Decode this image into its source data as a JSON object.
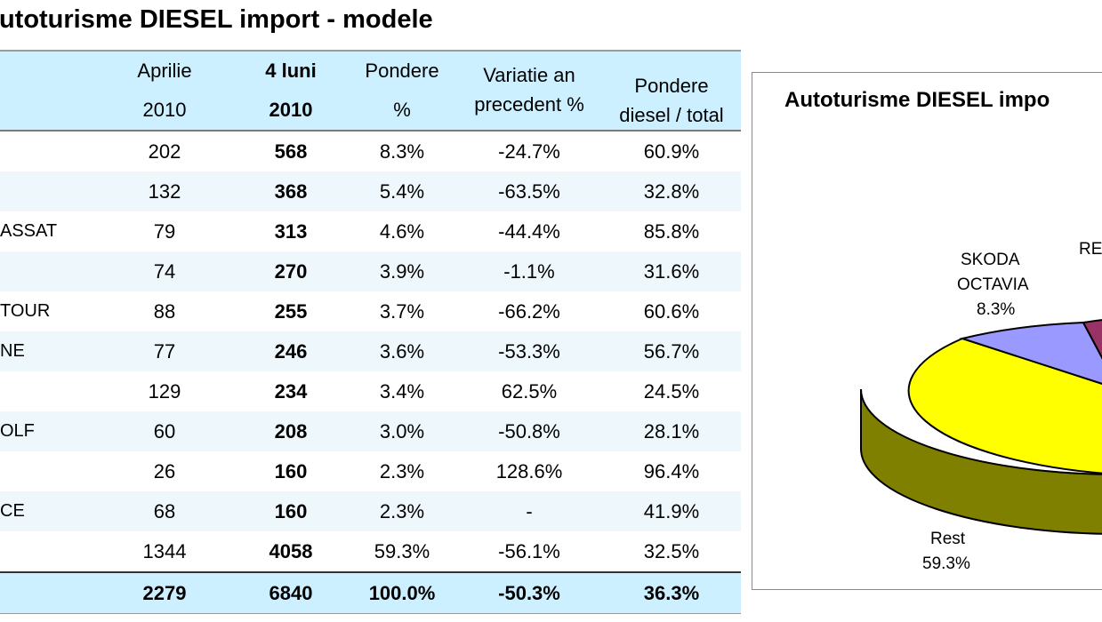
{
  "page_title": "Autoturisme DIESEL import - modele",
  "table": {
    "headers": {
      "c1": [
        "Aprilie",
        "2010"
      ],
      "c2": [
        "4 luni",
        "2010"
      ],
      "c3": [
        "Pondere",
        "%"
      ],
      "c4": [
        "Variatie an",
        "precedent %"
      ],
      "c5": [
        "Pondere",
        "diesel / total"
      ]
    },
    "rows": [
      {
        "name": "",
        "aprilie": "202",
        "luni4": "568",
        "pondere": "8.3%",
        "variatie": "-24.7%",
        "diesel": "60.9%"
      },
      {
        "name": "",
        "aprilie": "132",
        "luni4": "368",
        "pondere": "5.4%",
        "variatie": "-63.5%",
        "diesel": "32.8%"
      },
      {
        "name": "ASSAT",
        "aprilie": "79",
        "luni4": "313",
        "pondere": "4.6%",
        "variatie": "-44.4%",
        "diesel": "85.8%"
      },
      {
        "name": "",
        "aprilie": "74",
        "luni4": "270",
        "pondere": "3.9%",
        "variatie": "-1.1%",
        "diesel": "31.6%"
      },
      {
        "name": "TOUR",
        "aprilie": "88",
        "luni4": "255",
        "pondere": "3.7%",
        "variatie": "-66.2%",
        "diesel": "60.6%"
      },
      {
        "name": "NE",
        "aprilie": "77",
        "luni4": "246",
        "pondere": "3.6%",
        "variatie": "-53.3%",
        "diesel": "56.7%"
      },
      {
        "name": "",
        "aprilie": "129",
        "luni4": "234",
        "pondere": "3.4%",
        "variatie": "62.5%",
        "diesel": "24.5%"
      },
      {
        "name": "OLF",
        "aprilie": "60",
        "luni4": "208",
        "pondere": "3.0%",
        "variatie": "-50.8%",
        "diesel": "28.1%"
      },
      {
        "name": "",
        "aprilie": "26",
        "luni4": "160",
        "pondere": "2.3%",
        "variatie": "128.6%",
        "diesel": "96.4%"
      },
      {
        "name": "CE",
        "aprilie": "68",
        "luni4": "160",
        "pondere": "2.3%",
        "variatie": "-",
        "diesel": "41.9%"
      },
      {
        "name": "",
        "aprilie": "1344",
        "luni4": "4058",
        "pondere": "59.3%",
        "variatie": "-56.1%",
        "diesel": "32.5%"
      }
    ],
    "total": {
      "aprilie": "2279",
      "luni4": "6840",
      "pondere": "100.0%",
      "variatie": "-50.3%",
      "diesel": "36.3%"
    }
  },
  "pie": {
    "title": "Autoturisme DIESEL impo",
    "labels": {
      "skoda": [
        "SKODA",
        "OCTAVIA",
        "8.3%"
      ],
      "re": "RE",
      "rest": [
        "Rest",
        "59.3%"
      ]
    },
    "colors": {
      "rest": "#ffff00",
      "rest_side": "#808000",
      "skoda": "#9999ff",
      "re": "#993366",
      "outline": "#000000"
    }
  },
  "chart_data": {
    "type": "pie",
    "title": "Autoturisme DIESEL impo",
    "slices": [
      {
        "label": "SKODA OCTAVIA",
        "value": 8.3
      },
      {
        "label": "RE",
        "value": null
      },
      {
        "label": "Rest",
        "value": 59.3
      }
    ]
  }
}
